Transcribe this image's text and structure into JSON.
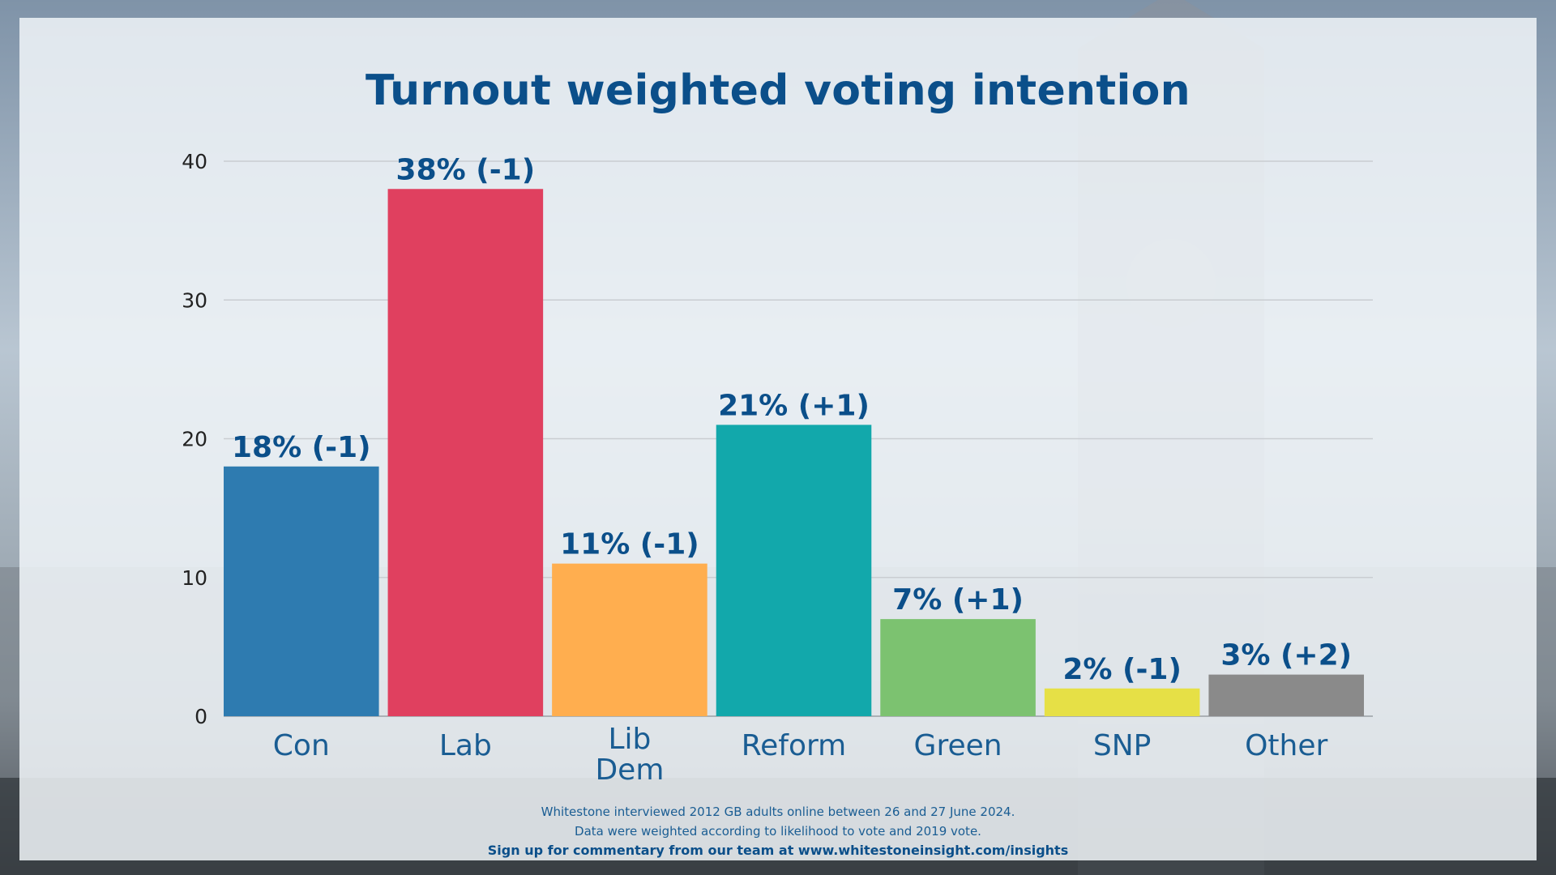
{
  "chart_data": {
    "type": "bar",
    "title": "Turnout weighted voting intention",
    "categories": [
      "Con",
      "Lab",
      "Lib Dem",
      "Reform",
      "Green",
      "SNP",
      "Other"
    ],
    "category_lines": [
      [
        "Con"
      ],
      [
        "Lab"
      ],
      [
        "Lib",
        "Dem"
      ],
      [
        "Reform"
      ],
      [
        "Green"
      ],
      [
        "SNP"
      ],
      [
        "Other"
      ]
    ],
    "values": [
      18,
      38,
      11,
      21,
      7,
      2,
      3
    ],
    "data_labels": [
      "18% (-1)",
      "38% (-1)",
      "11% (-1)",
      "21% (+1)",
      "7% (+1)",
      "2% (-1)",
      "3% (+2)"
    ],
    "colors": [
      "#2e7bb0",
      "#e0405f",
      "#ffae4f",
      "#12a8ab",
      "#7cc270",
      "#e6e046",
      "#8a8a8a"
    ],
    "yticks": [
      0,
      10,
      20,
      30,
      40
    ],
    "ylim": [
      0,
      40
    ],
    "xlabel": "",
    "ylabel": "",
    "grid": true,
    "legend": false
  },
  "footer": {
    "line1": "Whitestone interviewed 2012 GB adults online between 26 and 27 June 2024.",
    "line2": "Data were weighted according to likelihood to vote and 2019 vote.",
    "signup": "Sign up for commentary from our team at www.whitestoneinsight.com/insights"
  }
}
